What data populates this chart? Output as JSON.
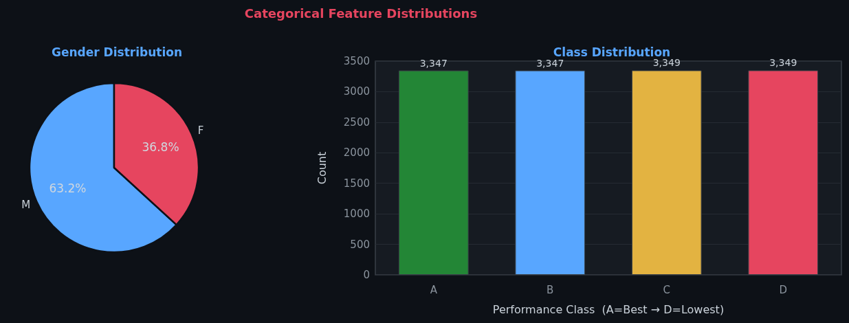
{
  "chart_data": [
    {
      "type": "other",
      "title": "Categorical Feature Distributions"
    },
    {
      "type": "pie",
      "title": "Gender Distribution",
      "categories": [
        "M",
        "F"
      ],
      "values": [
        63.2,
        36.8
      ],
      "colors": [
        "#58a6ff",
        "#e6455f"
      ],
      "value_labels": [
        "63.2%",
        "36.8%"
      ]
    },
    {
      "type": "bar",
      "title": "Class Distribution",
      "xlabel": "Performance Class  (A=Best → D=Lowest)",
      "ylabel": "Count",
      "categories": [
        "A",
        "B",
        "C",
        "D"
      ],
      "values": [
        3347,
        3347,
        3349,
        3349
      ],
      "colors": [
        "#238636",
        "#58a6ff",
        "#e3b341",
        "#e6455f"
      ],
      "value_labels": [
        "3,347",
        "3,347",
        "3,349",
        "3,349"
      ],
      "ylim": [
        0,
        3500
      ],
      "yticks": [
        0,
        500,
        1000,
        1500,
        2000,
        2500,
        3000,
        3500
      ],
      "grid": "y"
    }
  ]
}
